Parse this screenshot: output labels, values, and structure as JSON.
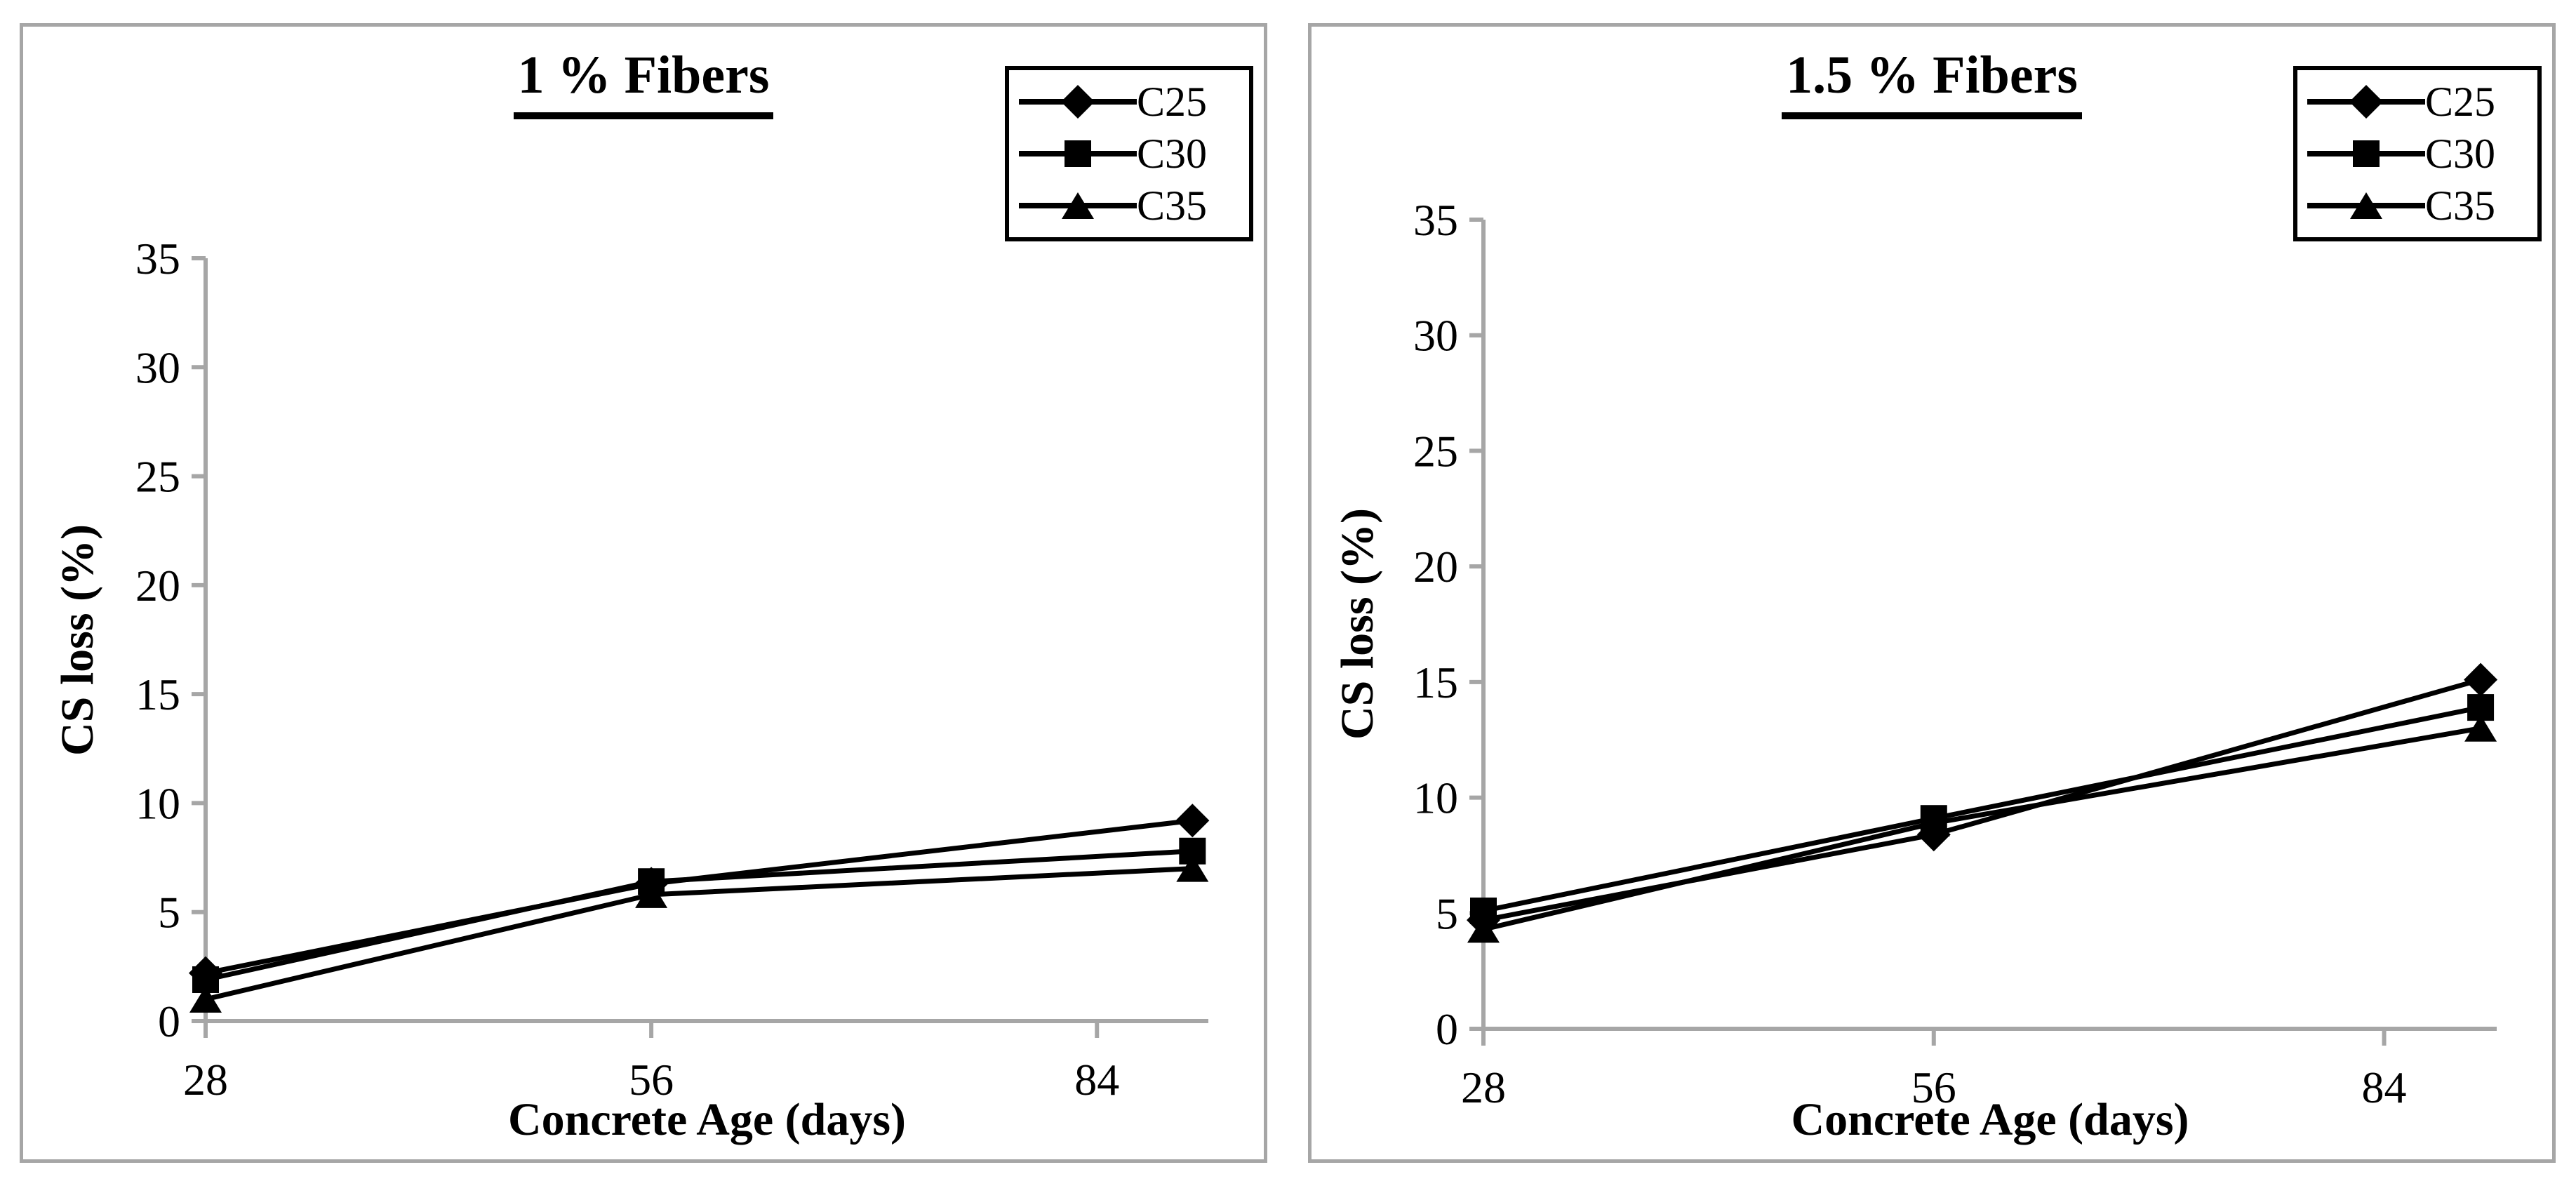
{
  "figure": {
    "background_color": "#ffffff",
    "axis_color": "#a6a6a6",
    "data_color": "#000000",
    "marker_shapes": {
      "C25": "diamond",
      "C30": "square",
      "C35": "triangle"
    }
  },
  "chart_data": [
    {
      "type": "line",
      "title": "1 % Fibers",
      "xlabel": "Concrete Age (days)",
      "ylabel": "CS loss (%)",
      "x": [
        28,
        56,
        90
      ],
      "x_tick_values": [
        28,
        56,
        84
      ],
      "x_tick_labels": [
        "28",
        "56",
        "84"
      ],
      "y_tick_values": [
        0,
        5,
        10,
        15,
        20,
        25,
        30,
        35
      ],
      "y_tick_labels": [
        "0",
        "5",
        "10",
        "15",
        "20",
        "25",
        "30",
        "35"
      ],
      "ylim": [
        0,
        35
      ],
      "xlim": [
        28,
        91
      ],
      "grid": false,
      "legend_position": "top-right",
      "series": [
        {
          "name": "C25",
          "marker": "diamond",
          "color": "#000000",
          "values": [
            2.2,
            6.3,
            9.2
          ]
        },
        {
          "name": "C30",
          "marker": "square",
          "color": "#000000",
          "values": [
            1.9,
            6.4,
            7.8
          ]
        },
        {
          "name": "C35",
          "marker": "triangle",
          "color": "#000000",
          "values": [
            1.0,
            5.8,
            7.0
          ]
        }
      ]
    },
    {
      "type": "line",
      "title": "1.5 % Fibers",
      "xlabel": "Concrete Age (days)",
      "ylabel": "CS loss (%)",
      "x": [
        28,
        56,
        90
      ],
      "x_tick_values": [
        28,
        56,
        84
      ],
      "x_tick_labels": [
        "28",
        "56",
        "84"
      ],
      "y_tick_values": [
        0,
        5,
        10,
        15,
        20,
        25,
        30,
        35
      ],
      "y_tick_labels": [
        "0",
        "5",
        "10",
        "15",
        "20",
        "25",
        "30",
        "35"
      ],
      "ylim": [
        0,
        35
      ],
      "xlim": [
        28,
        91
      ],
      "grid": false,
      "legend_position": "top-right",
      "series": [
        {
          "name": "C25",
          "marker": "diamond",
          "color": "#000000",
          "values": [
            4.7,
            8.4,
            15.1
          ]
        },
        {
          "name": "C30",
          "marker": "square",
          "color": "#000000",
          "values": [
            5.1,
            9.1,
            13.9
          ]
        },
        {
          "name": "C35",
          "marker": "triangle",
          "color": "#000000",
          "values": [
            4.3,
            8.9,
            13.0
          ]
        }
      ]
    }
  ]
}
